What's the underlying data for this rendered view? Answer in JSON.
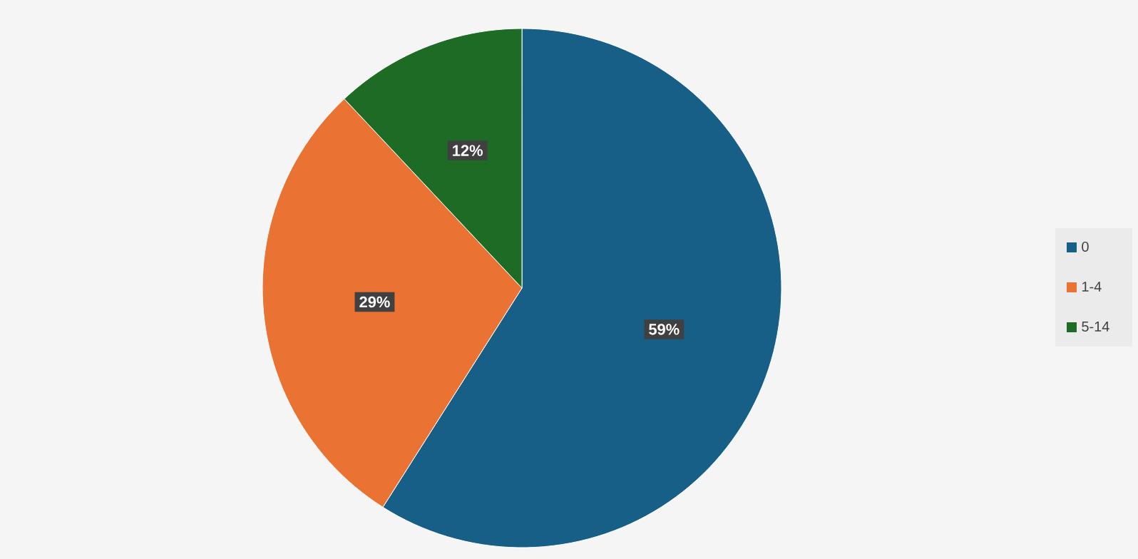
{
  "chart_data": {
    "type": "pie",
    "categories": [
      "0",
      "1-4",
      "5-14"
    ],
    "values": [
      59,
      29,
      12
    ],
    "colors": [
      "#175f86",
      "#ea7232",
      "#1e6b26"
    ],
    "value_labels": [
      "59%",
      "29%",
      "12%"
    ],
    "legend": "right"
  }
}
